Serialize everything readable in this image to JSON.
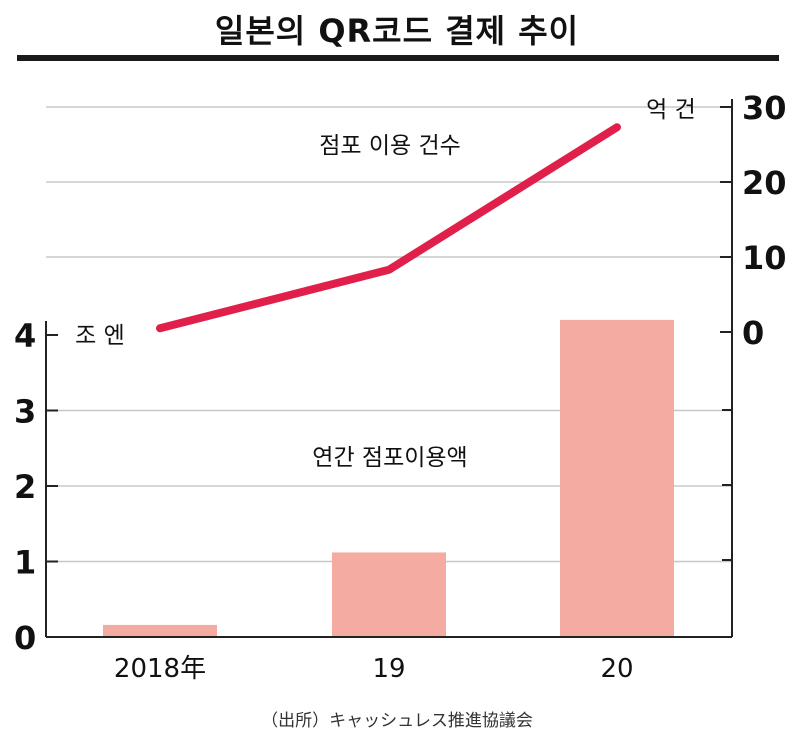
{
  "title": "일본의 QR코드 결제 추이",
  "source": "（出所）キャッシュレス推進協議会",
  "colors": {
    "bar": "#f4aba2",
    "line": "#e0204a",
    "grid": "#c8c8c8",
    "axis": "#222222"
  },
  "chart_data": [
    {
      "type": "bar",
      "title": "연간 점포이용액",
      "categories": [
        "2018年",
        "19",
        "20"
      ],
      "values": [
        0.16,
        1.12,
        4.2
      ],
      "unit": "조 엔",
      "ylim": [
        0,
        4
      ],
      "yticks": [
        "0",
        "1",
        "2",
        "3",
        "4"
      ],
      "grid": true
    },
    {
      "type": "line",
      "title": "점포 이용 건수",
      "categories": [
        "2018年",
        "19",
        "20"
      ],
      "values": [
        0.5,
        8.3,
        27.3
      ],
      "unit": "억 건",
      "ylim": [
        0,
        30
      ],
      "yticks": [
        "0",
        "10",
        "20",
        "30"
      ],
      "axis_side": "right",
      "grid": true
    }
  ]
}
